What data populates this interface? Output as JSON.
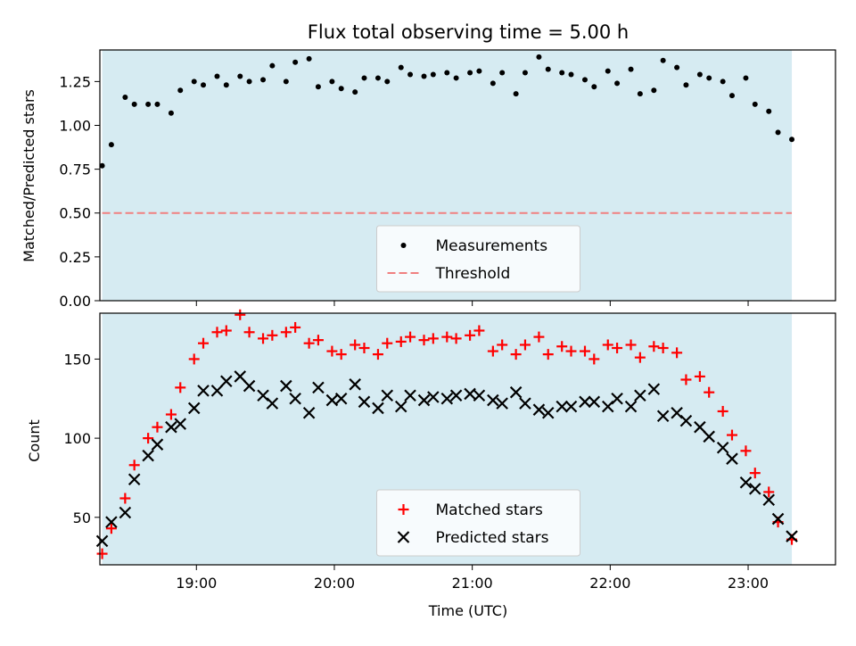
{
  "chart_data": [
    {
      "type": "scatter",
      "title": "Flux total observing time = 5.00 h",
      "xlabel": "",
      "ylabel": "Matched/Predicted stars",
      "xlim": [
        "18:18",
        "23:38"
      ],
      "ylim": [
        0,
        1.43
      ],
      "y_ticks": [
        0.0,
        0.25,
        0.5,
        0.75,
        1.0,
        1.25
      ],
      "y_tick_labels": [
        "0.00",
        "0.25",
        "0.50",
        "0.75",
        "1.00",
        "1.25"
      ],
      "x_ticks": [
        "19:00",
        "20:00",
        "21:00",
        "22:00",
        "23:00"
      ],
      "x_tick_labels_shown": false,
      "observing_window": {
        "start": "18:19",
        "end": "23:19",
        "color": "#add8e6"
      },
      "threshold": {
        "name": "Threshold",
        "value": 0.5,
        "style": "dashed",
        "color": "#f08080"
      },
      "legend": {
        "location": "lower center",
        "entries": [
          "Measurements",
          "Threshold"
        ]
      },
      "series": [
        {
          "name": "Measurements",
          "marker": "dot",
          "color": "#000000",
          "x": [
            "18:19",
            "18:23",
            "18:29",
            "18:33",
            "18:39",
            "18:43",
            "18:49",
            "18:53",
            "18:59",
            "19:03",
            "19:09",
            "19:13",
            "19:19",
            "19:23",
            "19:29",
            "19:33",
            "19:39",
            "19:43",
            "19:49",
            "19:53",
            "19:59",
            "20:03",
            "20:09",
            "20:13",
            "20:19",
            "20:23",
            "20:29",
            "20:33",
            "20:39",
            "20:43",
            "20:49",
            "20:53",
            "20:59",
            "21:03",
            "21:09",
            "21:13",
            "21:19",
            "21:23",
            "21:29",
            "21:33",
            "21:39",
            "21:43",
            "21:49",
            "21:53",
            "21:59",
            "22:03",
            "22:09",
            "22:13",
            "22:19",
            "22:23",
            "22:29",
            "22:33",
            "22:39",
            "22:43",
            "22:49",
            "22:53",
            "22:59",
            "23:03",
            "23:09",
            "23:13",
            "23:19"
          ],
          "y": [
            0.77,
            0.89,
            1.16,
            1.12,
            1.12,
            1.12,
            1.07,
            1.2,
            1.25,
            1.23,
            1.28,
            1.23,
            1.28,
            1.25,
            1.26,
            1.34,
            1.25,
            1.36,
            1.38,
            1.22,
            1.25,
            1.21,
            1.19,
            1.27,
            1.27,
            1.25,
            1.33,
            1.29,
            1.28,
            1.29,
            1.3,
            1.27,
            1.3,
            1.31,
            1.24,
            1.3,
            1.18,
            1.3,
            1.39,
            1.32,
            1.3,
            1.29,
            1.26,
            1.22,
            1.31,
            1.24,
            1.32,
            1.18,
            1.2,
            1.37,
            1.33,
            1.23,
            1.29,
            1.27,
            1.25,
            1.17,
            1.27,
            1.12,
            1.08,
            0.96,
            0.92
          ]
        }
      ]
    },
    {
      "type": "scatter",
      "title": "",
      "xlabel": "Time (UTC)",
      "ylabel": "Count",
      "xlim": [
        "18:18",
        "23:38"
      ],
      "ylim": [
        20,
        179
      ],
      "y_ticks": [
        50,
        100,
        150
      ],
      "y_tick_labels": [
        "50",
        "100",
        "150"
      ],
      "x_ticks": [
        "19:00",
        "20:00",
        "21:00",
        "22:00",
        "23:00"
      ],
      "x_tick_labels": [
        "19:00",
        "20:00",
        "21:00",
        "22:00",
        "23:00"
      ],
      "observing_window": {
        "start": "18:19",
        "end": "23:19",
        "color": "#add8e6"
      },
      "legend": {
        "location": "lower center",
        "entries": [
          "Matched stars",
          "Predicted stars"
        ]
      },
      "series": [
        {
          "name": "Matched stars",
          "marker": "plus",
          "color": "#ff0000",
          "x": [
            "18:19",
            "18:23",
            "18:29",
            "18:33",
            "18:39",
            "18:43",
            "18:49",
            "18:53",
            "18:59",
            "19:03",
            "19:09",
            "19:13",
            "19:19",
            "19:23",
            "19:29",
            "19:33",
            "19:39",
            "19:43",
            "19:49",
            "19:53",
            "19:59",
            "20:03",
            "20:09",
            "20:13",
            "20:19",
            "20:23",
            "20:29",
            "20:33",
            "20:39",
            "20:43",
            "20:49",
            "20:53",
            "20:59",
            "21:03",
            "21:09",
            "21:13",
            "21:19",
            "21:23",
            "21:29",
            "21:33",
            "21:39",
            "21:43",
            "21:49",
            "21:53",
            "21:59",
            "22:03",
            "22:09",
            "22:13",
            "22:19",
            "22:23",
            "22:29",
            "22:33",
            "22:39",
            "22:43",
            "22:49",
            "22:53",
            "22:59",
            "23:03",
            "23:09",
            "23:13",
            "23:19"
          ],
          "y": [
            27,
            43,
            62,
            83,
            100,
            107,
            115,
            132,
            150,
            160,
            167,
            168,
            178,
            167,
            163,
            165,
            167,
            170,
            160,
            162,
            155,
            153,
            159,
            157,
            153,
            160,
            161,
            164,
            162,
            163,
            164,
            163,
            165,
            168,
            155,
            159,
            153,
            159,
            164,
            153,
            158,
            155,
            155,
            150,
            159,
            157,
            159,
            151,
            158,
            157,
            154,
            137,
            139,
            129,
            117,
            102,
            92,
            78,
            66,
            47,
            36
          ]
        },
        {
          "name": "Predicted stars",
          "marker": "x",
          "color": "#000000",
          "x": [
            "18:19",
            "18:23",
            "18:29",
            "18:33",
            "18:39",
            "18:43",
            "18:49",
            "18:53",
            "18:59",
            "19:03",
            "19:09",
            "19:13",
            "19:19",
            "19:23",
            "19:29",
            "19:33",
            "19:39",
            "19:43",
            "19:49",
            "19:53",
            "19:59",
            "20:03",
            "20:09",
            "20:13",
            "20:19",
            "20:23",
            "20:29",
            "20:33",
            "20:39",
            "20:43",
            "20:49",
            "20:53",
            "20:59",
            "21:03",
            "21:09",
            "21:13",
            "21:19",
            "21:23",
            "21:29",
            "21:33",
            "21:39",
            "21:43",
            "21:49",
            "21:53",
            "21:59",
            "22:03",
            "22:09",
            "22:13",
            "22:19",
            "22:23",
            "22:29",
            "22:33",
            "22:39",
            "22:43",
            "22:49",
            "22:53",
            "22:59",
            "23:03",
            "23:09",
            "23:13",
            "23:19"
          ],
          "y": [
            35,
            47,
            53,
            74,
            89,
            96,
            107,
            109,
            119,
            130,
            130,
            136,
            139,
            133,
            127,
            122,
            133,
            125,
            116,
            132,
            124,
            125,
            134,
            123,
            119,
            127,
            120,
            127,
            124,
            126,
            125,
            127,
            128,
            127,
            124,
            122,
            129,
            122,
            118,
            116,
            120,
            120,
            123,
            123,
            120,
            125,
            120,
            127,
            131,
            114,
            116,
            111,
            107,
            101,
            94,
            87,
            72,
            68,
            61,
            49,
            38
          ]
        }
      ]
    }
  ]
}
